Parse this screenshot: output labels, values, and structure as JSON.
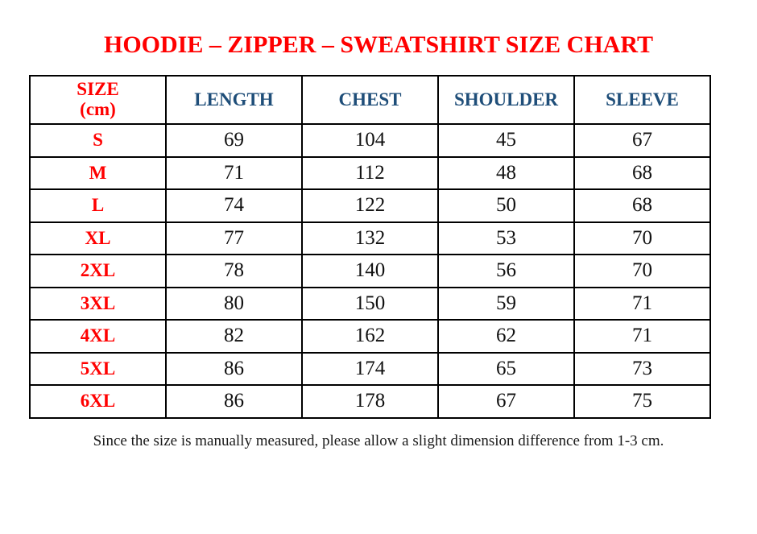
{
  "page": {
    "stray_mark": ".",
    "title": "HOODIE – ZIPPER – SWEATSHIRT SIZE CHART",
    "footnote": "Since the size is manually measured, please allow a slight dimension difference from 1-3 cm."
  },
  "colors": {
    "title_red": "#ff0000",
    "header_blue": "#1f4e79",
    "body_black": "#111111",
    "border_black": "#000000"
  },
  "size_chart": {
    "unit": "cm",
    "columns": [
      "SIZE\n(cm)",
      "LENGTH",
      "CHEST",
      "SHOULDER",
      "SLEEVE"
    ],
    "rows": [
      {
        "size": "S",
        "length": "69",
        "chest": "104",
        "shoulder": "45",
        "sleeve": "67"
      },
      {
        "size": "M",
        "length": "71",
        "chest": "112",
        "shoulder": "48",
        "sleeve": "68"
      },
      {
        "size": "L",
        "length": "74",
        "chest": "122",
        "shoulder": "50",
        "sleeve": "68"
      },
      {
        "size": "XL",
        "length": "77",
        "chest": "132",
        "shoulder": "53",
        "sleeve": "70"
      },
      {
        "size": "2XL",
        "length": "78",
        "chest": "140",
        "shoulder": "56",
        "sleeve": "70"
      },
      {
        "size": "3XL",
        "length": "80",
        "chest": "150",
        "shoulder": "59",
        "sleeve": "71"
      },
      {
        "size": "4XL",
        "length": "82",
        "chest": "162",
        "shoulder": "62",
        "sleeve": "71"
      },
      {
        "size": "5XL",
        "length": "86",
        "chest": "174",
        "shoulder": "65",
        "sleeve": "73"
      },
      {
        "size": "6XL",
        "length": "86",
        "chest": "178",
        "shoulder": "67",
        "sleeve": "75"
      }
    ]
  }
}
